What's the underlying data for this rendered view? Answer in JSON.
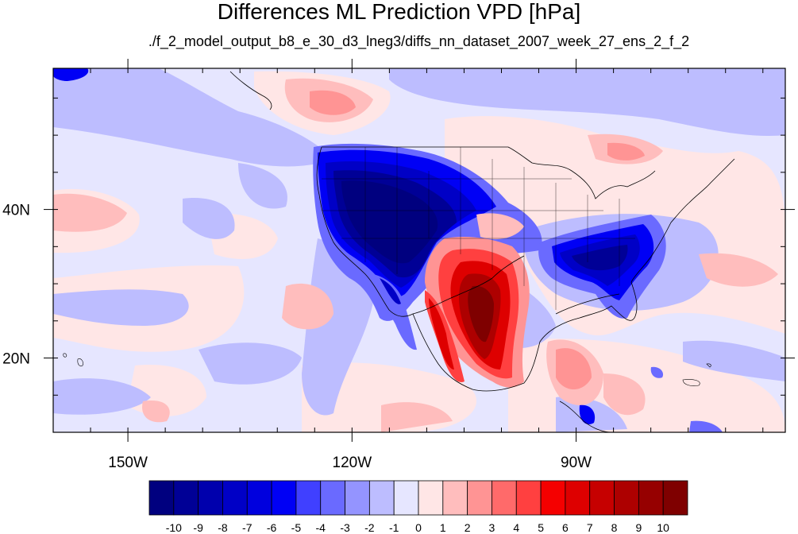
{
  "title": "Differences ML Prediction VPD [hPa]",
  "subtitle": "./f_2_model_output_b8_e_30_d3_lneg3/diffs_nn_dataset_2007_week_27_ens_2_f_2",
  "map": {
    "lon_range": [
      -160,
      -62
    ],
    "lat_range": [
      10,
      59
    ],
    "x_ticks": [
      {
        "lon": -150,
        "label": "150W"
      },
      {
        "lon": -120,
        "label": "120W"
      },
      {
        "lon": -90,
        "label": "90W"
      }
    ],
    "y_ticks": [
      {
        "lat": 40,
        "label": "40N"
      },
      {
        "lat": 20,
        "label": "20N"
      }
    ],
    "x_minor_lons": [
      -160,
      -155,
      -150,
      -145,
      -140,
      -135,
      -130,
      -125,
      -120,
      -115,
      -110,
      -105,
      -100,
      -95,
      -90,
      -85,
      -80,
      -75,
      -70,
      -65
    ],
    "y_minor_lats": [
      15,
      20,
      25,
      30,
      35,
      40,
      45,
      50,
      55
    ]
  },
  "colorbar": {
    "levels": [
      "-10",
      "-9",
      "-8",
      "-7",
      "-6",
      "-5",
      "-4",
      "-3",
      "-2",
      "-1",
      "0",
      "1",
      "2",
      "3",
      "4",
      "5",
      "6",
      "7",
      "8",
      "9",
      "10"
    ],
    "colors": [
      "#00007f",
      "#000096",
      "#0000ad",
      "#0000c6",
      "#0000de",
      "#0000f5",
      "#4040ff",
      "#6a6aff",
      "#9494ff",
      "#bdbdff",
      "#e6e6ff",
      "#ffe6e6",
      "#ffbdbd",
      "#ff9494",
      "#ff6a6a",
      "#ff4040",
      "#f50000",
      "#de0000",
      "#c60000",
      "#ad0000",
      "#960000",
      "#7f0000"
    ]
  }
}
